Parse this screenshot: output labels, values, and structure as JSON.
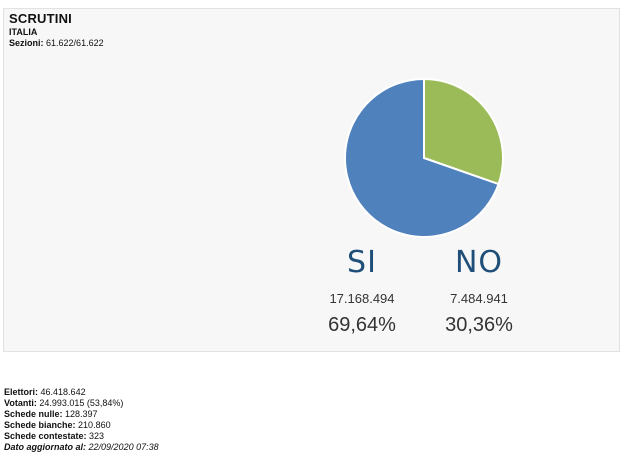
{
  "header": {
    "title": "SCRUTINI",
    "region": "ITALIA",
    "sections_label": "Sezioni:",
    "sections_value": "61.622/61.622"
  },
  "results": {
    "yes": {
      "label": "SI",
      "votes": "17.168.494",
      "percent": "69,64%",
      "share": 0.6964,
      "color": "#4f81bd"
    },
    "no": {
      "label": "NO",
      "votes": "7.484.941",
      "percent": "30,36%",
      "share": 0.3036,
      "color": "#9bbb59"
    }
  },
  "stats": {
    "elettori_label": "Elettori:",
    "elettori_value": "46.418.642",
    "votanti_label": "Votanti:",
    "votanti_value": "24.993.015 (53,84%)",
    "nulle_label": "Schede nulle:",
    "nulle_value": "128.397",
    "bianche_label": "Schede bianche:",
    "bianche_value": "210.860",
    "contestate_label": "Schede contestate:",
    "contestate_value": "323",
    "updated_label": "Dato aggiornato al:",
    "updated_value": "22/09/2020 07:38"
  }
}
